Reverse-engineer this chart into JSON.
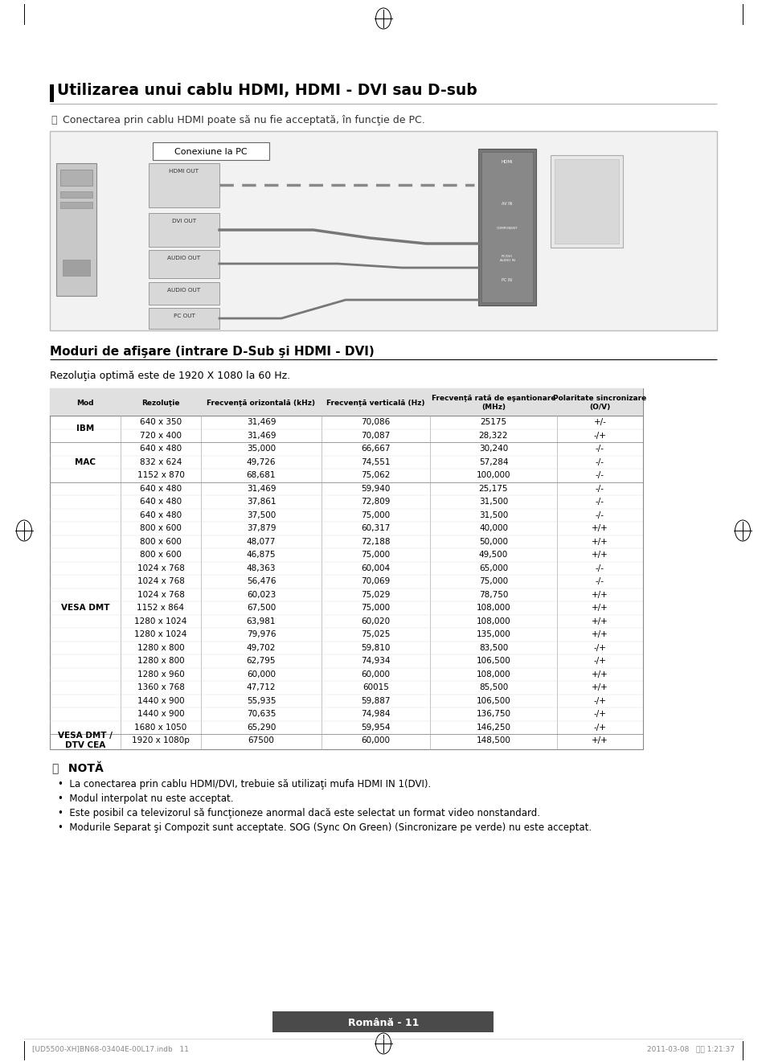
{
  "title": "Utilizarea unui cablu HDMI, HDMI - DVI sau D-sub",
  "subtitle": "Conectarea prin cablu HDMI poate să nu fie acceptată, în funcţie de PC.",
  "conexiune_label": "Conexiune la PC",
  "section_title": "Moduri de afişare (intrare D-Sub şi HDMI - DVI)",
  "section_subtitle": "Rezoluţia optimă este de 1920 X 1080 la 60 Hz.",
  "table_headers": [
    "Mod",
    "Rezoluţie",
    "Frecvenţă orizontală (kHz)",
    "Frecvenţă verticală (Hz)",
    "Frecvenţă rată de eşantionare\n(MHz)",
    "Polaritate sincronizare\n(O/V)"
  ],
  "table_data": [
    [
      "IBM",
      "640 x 350",
      "31,469",
      "70,086",
      "25175",
      "+/-"
    ],
    [
      "",
      "720 x 400",
      "31,469",
      "70,087",
      "28,322",
      "-/+"
    ],
    [
      "MAC",
      "640 x 480",
      "35,000",
      "66,667",
      "30,240",
      "-/-"
    ],
    [
      "",
      "832 x 624",
      "49,726",
      "74,551",
      "57,284",
      "-/-"
    ],
    [
      "",
      "1152 x 870",
      "68,681",
      "75,062",
      "100,000",
      "-/-"
    ],
    [
      "VESA DMT",
      "640 x 480",
      "31,469",
      "59,940",
      "25,175",
      "-/-"
    ],
    [
      "",
      "640 x 480",
      "37,861",
      "72,809",
      "31,500",
      "-/-"
    ],
    [
      "",
      "640 x 480",
      "37,500",
      "75,000",
      "31,500",
      "-/-"
    ],
    [
      "",
      "800 x 600",
      "37,879",
      "60,317",
      "40,000",
      "+/+"
    ],
    [
      "",
      "800 x 600",
      "48,077",
      "72,188",
      "50,000",
      "+/+"
    ],
    [
      "",
      "800 x 600",
      "46,875",
      "75,000",
      "49,500",
      "+/+"
    ],
    [
      "",
      "1024 x 768",
      "48,363",
      "60,004",
      "65,000",
      "-/-"
    ],
    [
      "",
      "1024 x 768",
      "56,476",
      "70,069",
      "75,000",
      "-/-"
    ],
    [
      "",
      "1024 x 768",
      "60,023",
      "75,029",
      "78,750",
      "+/+"
    ],
    [
      "",
      "1152 x 864",
      "67,500",
      "75,000",
      "108,000",
      "+/+"
    ],
    [
      "",
      "1280 x 1024",
      "63,981",
      "60,020",
      "108,000",
      "+/+"
    ],
    [
      "",
      "1280 x 1024",
      "79,976",
      "75,025",
      "135,000",
      "+/+"
    ],
    [
      "",
      "1280 x 800",
      "49,702",
      "59,810",
      "83,500",
      "-/+"
    ],
    [
      "",
      "1280 x 800",
      "62,795",
      "74,934",
      "106,500",
      "-/+"
    ],
    [
      "",
      "1280 x 960",
      "60,000",
      "60,000",
      "108,000",
      "+/+"
    ],
    [
      "",
      "1360 x 768",
      "47,712",
      "60015",
      "85,500",
      "+/+"
    ],
    [
      "",
      "1440 x 900",
      "55,935",
      "59,887",
      "106,500",
      "-/+"
    ],
    [
      "",
      "1440 x 900",
      "70,635",
      "74,984",
      "136,750",
      "-/+"
    ],
    [
      "",
      "1680 x 1050",
      "65,290",
      "59,954",
      "146,250",
      "-/+"
    ],
    [
      "VESA DMT /\nDTV CEA",
      "1920 x 1080p",
      "67500",
      "60,000",
      "148,500",
      "+/+"
    ]
  ],
  "nota_title": "NOTĂ",
  "nota_items": [
    "La conectarea prin cablu HDMI/DVI, trebuie să utilizaţi mufa HDMI IN 1(DVI).",
    "Modul interpolat nu este acceptat.",
    "Este posibil ca televizorul să funcţioneze anormal dacă este selectat un format video nonstandard.",
    "Modurile Separat şi Compozit sunt acceptate. SOG (Sync On Green) (Sincronizare pe verde) nu este acceptat."
  ],
  "footer_text": "Română - 11",
  "footer_note": "[UD5500-XH]BN68-03404E-00L17.indb   11",
  "footer_date": "2011-03-08   오전 1:21:37",
  "bg_color": "#ffffff",
  "table_header_bg": "#e0e0e0",
  "diagram_bg": "#f2f2f2",
  "diagram_border": "#bbbbbb"
}
